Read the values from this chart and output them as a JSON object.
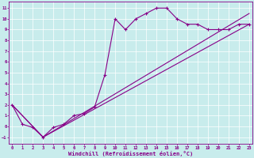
{
  "bg_color": "#c8ecec",
  "line_color": "#880088",
  "xlabel": "Windchill (Refroidissement éolien,°C)",
  "xlim": [
    -0.3,
    23.3
  ],
  "ylim": [
    -1.6,
    11.6
  ],
  "xticks": [
    0,
    1,
    2,
    3,
    4,
    5,
    6,
    7,
    8,
    9,
    10,
    11,
    12,
    13,
    14,
    15,
    16,
    17,
    18,
    19,
    20,
    21,
    22,
    23
  ],
  "yticks": [
    -1,
    0,
    1,
    2,
    3,
    4,
    5,
    6,
    7,
    8,
    9,
    10,
    11
  ],
  "curve1_x": [
    0,
    1,
    2,
    3,
    4,
    5,
    6,
    7,
    8,
    9,
    10,
    11,
    12,
    13,
    14,
    15,
    16,
    17,
    18,
    19,
    20,
    21,
    22,
    23
  ],
  "curve1_y": [
    2.0,
    0.2,
    -0.1,
    -1.0,
    -0.1,
    0.2,
    1.0,
    1.2,
    1.8,
    4.8,
    10.0,
    9.0,
    10.0,
    10.5,
    11.0,
    11.0,
    10.0,
    9.5,
    9.5,
    9.0,
    9.0,
    9.0,
    9.5,
    9.5
  ],
  "curve2_x": [
    0,
    3,
    23
  ],
  "curve2_y": [
    2.0,
    -1.0,
    9.5
  ],
  "curve3_x": [
    0,
    3,
    23
  ],
  "curve3_y": [
    2.0,
    -1.0,
    10.5
  ]
}
